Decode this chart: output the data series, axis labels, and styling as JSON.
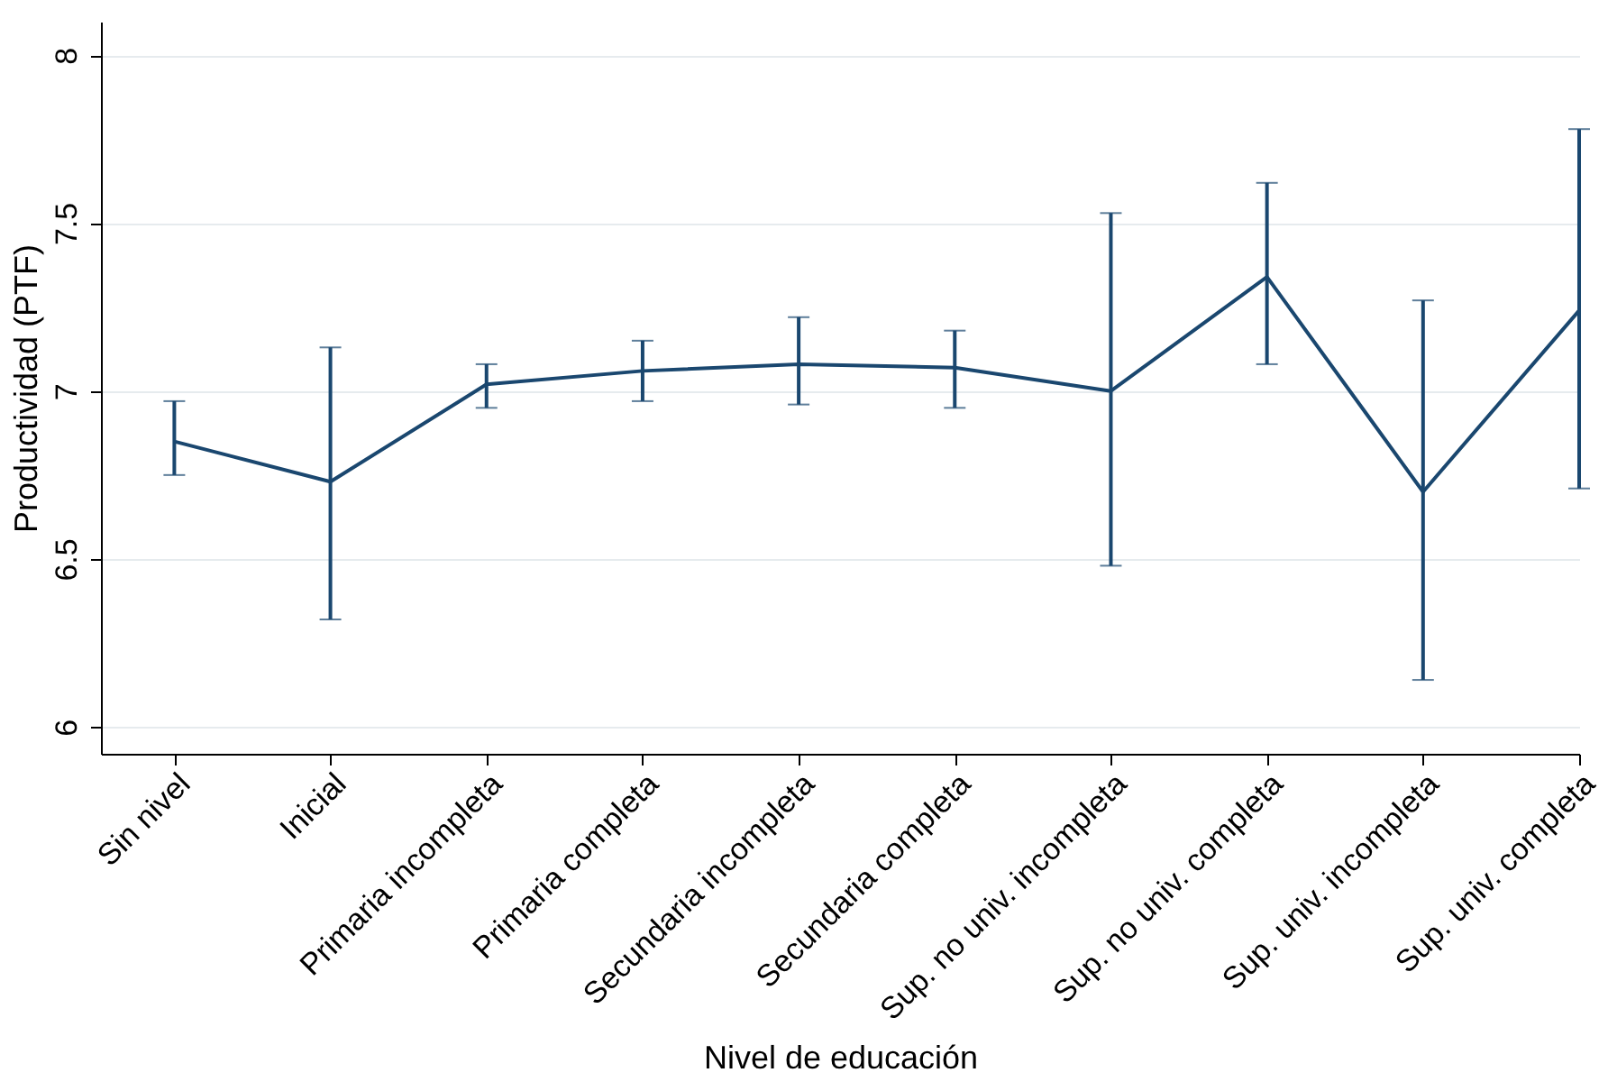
{
  "chart_data": {
    "type": "line",
    "xlabel": "Nivel de educación",
    "ylabel": "Productividad (PTF)",
    "categories": [
      "Sin nivel",
      "Inicial",
      "Primaria incompleta",
      "Primaria completa",
      "Secundaria incompleta",
      "Secundaria completa",
      "Sup. no univ. incompleta",
      "Sup. no univ. completa",
      "Sup. univ. incompleta",
      "Sup. univ. completa"
    ],
    "series": [
      {
        "color": "#1a476f",
        "values": [
          6.85,
          6.73,
          7.02,
          7.06,
          7.08,
          7.07,
          7.0,
          7.34,
          6.7,
          7.24
        ],
        "errors": [
          [
            6.75,
            6.97
          ],
          [
            6.32,
            7.13
          ],
          [
            6.95,
            7.08
          ],
          [
            6.97,
            7.15
          ],
          [
            6.96,
            7.22
          ],
          [
            6.95,
            7.18
          ],
          [
            6.48,
            7.53
          ],
          [
            7.08,
            7.62
          ],
          [
            6.14,
            7.27
          ],
          [
            6.71,
            7.78
          ]
        ]
      }
    ],
    "ylim": [
      5.92,
      8.1
    ],
    "yticks": [
      6,
      6.5,
      7,
      7.5,
      8
    ],
    "grid": "y",
    "marker": "none",
    "line_style": "solid"
  }
}
